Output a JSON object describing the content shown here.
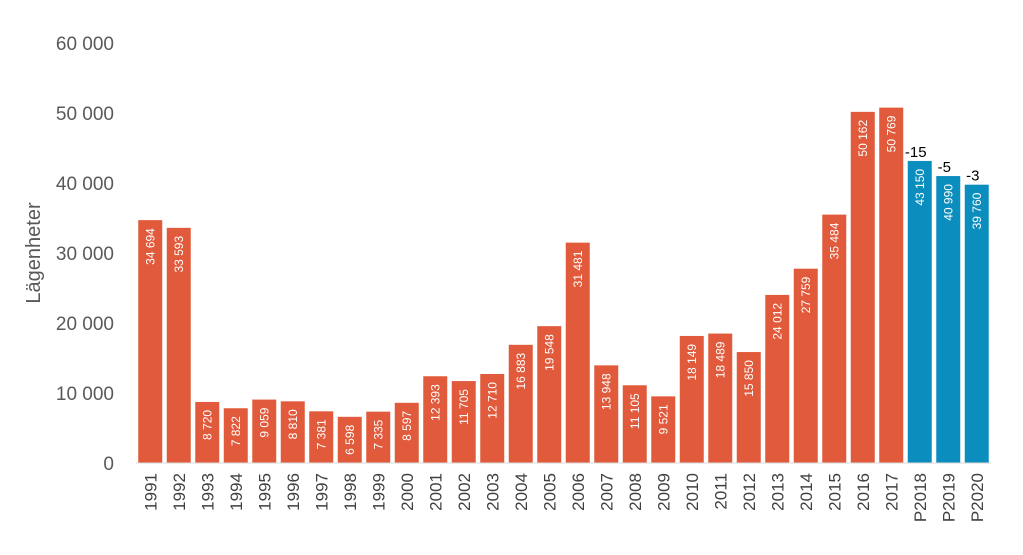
{
  "chart_data": {
    "type": "bar",
    "ylabel": "Lägenheter",
    "xlabel": "",
    "ylim": [
      0,
      60000
    ],
    "yticks": [
      0,
      10000,
      20000,
      30000,
      40000,
      50000,
      60000
    ],
    "ytick_labels": [
      "0",
      "10 000",
      "20 000",
      "30 000",
      "40 000",
      "50 000",
      "60 000"
    ],
    "grid": false,
    "categories": [
      "1991",
      "1992",
      "1993",
      "1994",
      "1995",
      "1996",
      "1997",
      "1998",
      "1999",
      "2000",
      "2001",
      "2002",
      "2003",
      "2004",
      "2005",
      "2006",
      "2007",
      "2008",
      "2009",
      "2010",
      "2011",
      "2012",
      "2013",
      "2014",
      "2015",
      "2016",
      "2017",
      "P2018",
      "P2019",
      "P2020"
    ],
    "values": [
      34694,
      33593,
      8720,
      7822,
      9059,
      8810,
      7381,
      6598,
      7335,
      8597,
      12393,
      11705,
      12710,
      16883,
      19548,
      31481,
      13948,
      11105,
      9521,
      18149,
      18489,
      15850,
      24012,
      27759,
      35484,
      50162,
      50769,
      43150,
      40990,
      39760
    ],
    "value_labels": [
      "34 694",
      "33 593",
      "8 720",
      "7 822",
      "9 059",
      "8 810",
      "7 381",
      "6 598",
      "7 335",
      "8 597",
      "12 393",
      "11 705",
      "12 710",
      "16 883",
      "19 548",
      "31 481",
      "13 948",
      "11 105",
      "9 521",
      "18 149",
      "18 489",
      "15 850",
      "24 012",
      "27 759",
      "35 484",
      "50 162",
      "50 769",
      "43 150",
      "40 990",
      "39 760"
    ],
    "bar_kind": [
      "actual",
      "actual",
      "actual",
      "actual",
      "actual",
      "actual",
      "actual",
      "actual",
      "actual",
      "actual",
      "actual",
      "actual",
      "actual",
      "actual",
      "actual",
      "actual",
      "actual",
      "actual",
      "actual",
      "actual",
      "actual",
      "actual",
      "actual",
      "actual",
      "actual",
      "actual",
      "actual",
      "forecast",
      "forecast",
      "forecast"
    ],
    "colors": {
      "actual": "#e05a3b",
      "forecast": "#0b8dbd"
    },
    "annotations": [
      {
        "category": "P2018",
        "text": "-15"
      },
      {
        "category": "P2019",
        "text": "-5"
      },
      {
        "category": "P2020",
        "text": "-3"
      }
    ]
  }
}
